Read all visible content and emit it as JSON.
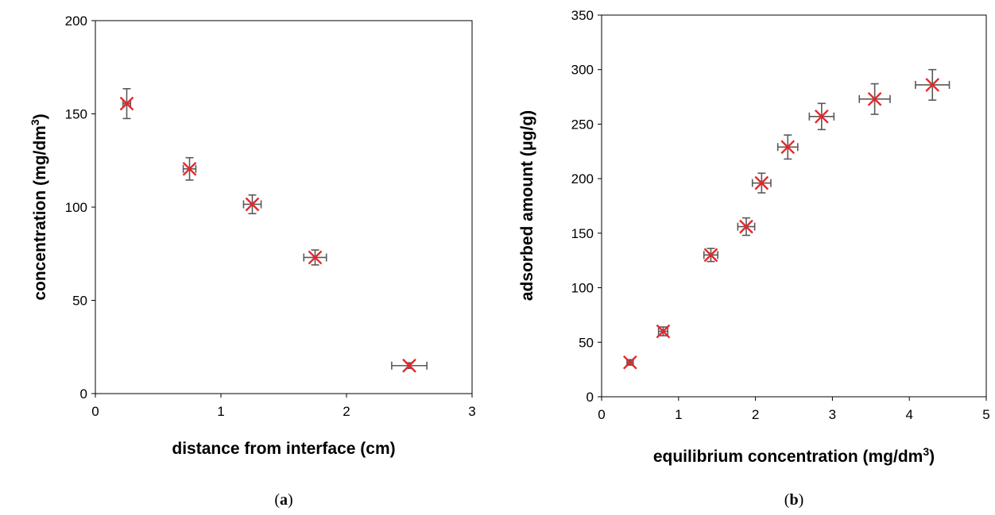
{
  "chart_data": [
    {
      "type": "scatter",
      "panel_label": "a",
      "xlabel": "distance from interface (cm)",
      "ylabel_main": "concentration (mg/dm",
      "ylabel_sup": "3",
      "ylabel_tail": ")",
      "xlim": [
        0,
        3
      ],
      "ylim": [
        0,
        200
      ],
      "xticks": [
        "0",
        "1",
        "2",
        "3"
      ],
      "yticks": [
        "0",
        "50",
        "100",
        "150",
        "200"
      ],
      "grid": false,
      "marker": "x",
      "marker_color": "#e8262a",
      "errorbar_color": "#595959",
      "points": [
        {
          "x": 0.25,
          "y": 155.5,
          "xerr": 0.03,
          "yerr": 8
        },
        {
          "x": 0.75,
          "y": 120.5,
          "xerr": 0.05,
          "yerr": 6
        },
        {
          "x": 1.25,
          "y": 101.5,
          "xerr": 0.07,
          "yerr": 5
        },
        {
          "x": 1.75,
          "y": 73,
          "xerr": 0.09,
          "yerr": 4
        },
        {
          "x": 2.5,
          "y": 15,
          "xerr": 0.14,
          "yerr": 1.5
        }
      ]
    },
    {
      "type": "scatter",
      "panel_label": "b",
      "xlabel_main": "equilibrium concentration (mg/dm",
      "xlabel_sup": "3",
      "xlabel_tail": ")",
      "ylabel": "adsorbed amount (μg/g)",
      "xlim": [
        0,
        5
      ],
      "ylim": [
        0,
        350
      ],
      "xticks": [
        "0",
        "1",
        "2",
        "3",
        "4",
        "5"
      ],
      "yticks": [
        "0",
        "50",
        "100",
        "150",
        "200",
        "250",
        "300",
        "350"
      ],
      "grid": false,
      "marker": "x",
      "marker_color": "#e8262a",
      "errorbar_color": "#595959",
      "points": [
        {
          "x": 0.37,
          "y": 31.5,
          "xerr": 0.04,
          "yerr": 2.5
        },
        {
          "x": 0.8,
          "y": 60,
          "xerr": 0.06,
          "yerr": 4
        },
        {
          "x": 1.42,
          "y": 130,
          "xerr": 0.09,
          "yerr": 6
        },
        {
          "x": 1.88,
          "y": 156,
          "xerr": 0.11,
          "yerr": 8
        },
        {
          "x": 2.08,
          "y": 196,
          "xerr": 0.12,
          "yerr": 9
        },
        {
          "x": 2.42,
          "y": 229,
          "xerr": 0.13,
          "yerr": 11
        },
        {
          "x": 2.86,
          "y": 257,
          "xerr": 0.16,
          "yerr": 12
        },
        {
          "x": 3.55,
          "y": 273,
          "xerr": 0.2,
          "yerr": 14
        },
        {
          "x": 4.3,
          "y": 286,
          "xerr": 0.22,
          "yerr": 14
        }
      ]
    }
  ]
}
